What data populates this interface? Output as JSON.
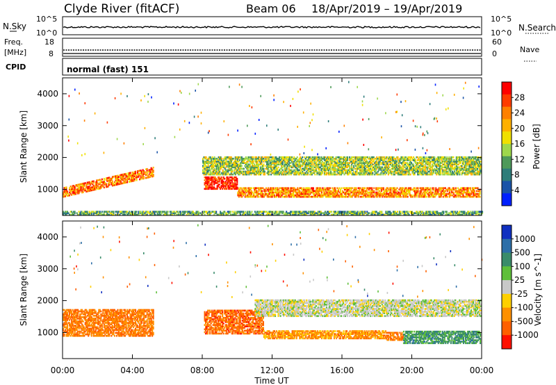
{
  "header": {
    "station": "Clyde River (fitACF)",
    "beam": "Beam 06",
    "date_range": "18/Apr/2019 – 19/Apr/2019"
  },
  "noise_panel": {
    "left_label": "N.Sky",
    "right_label": "N.Search",
    "left_ticks": [
      "10^5",
      "10^0"
    ],
    "right_ticks": [
      "10^5",
      "10^0"
    ]
  },
  "freq_panel": {
    "left_label_line1": "Freq.",
    "left_label_line2": "[MHz]",
    "right_label": "Nave",
    "left_ticks": [
      "18",
      "8"
    ],
    "right_ticks": [
      "60",
      "0"
    ]
  },
  "cpid_panel": {
    "label": "CPID",
    "mode_text": "normal (fast) 151"
  },
  "x_axis": {
    "label": "Time UT",
    "ticks": [
      "00:00",
      "04:00",
      "08:00",
      "12:00",
      "16:00",
      "20:00",
      "00:00"
    ]
  },
  "chart_data": [
    {
      "type": "heatmap",
      "name": "power",
      "ylabel": "Slant Range [km]",
      "ylim": [
        180,
        4500
      ],
      "yticks": [
        1000,
        2000,
        3000,
        4000
      ],
      "xlim_hours": [
        0,
        24
      ],
      "colorbar": {
        "label": "Power [dB]",
        "tick_labels": [
          "28",
          "24",
          "20",
          "16",
          "12",
          "8",
          "4"
        ],
        "colors": [
          "#ff0000",
          "#ff3b00",
          "#ff8000",
          "#ffb000",
          "#f0e000",
          "#9ed84c",
          "#4e9a5a",
          "#2e7d7a",
          "#1a53a8",
          "#0020ff"
        ]
      },
      "bands": [
        {
          "t0": 0.0,
          "t1": 5.2,
          "r0": 880,
          "r1": 1720,
          "level": 0.78,
          "note": "sloping band"
        },
        {
          "t0": 8.1,
          "t1": 10.0,
          "r0": 1000,
          "r1": 1400,
          "level": 0.95
        },
        {
          "t0": 10.0,
          "t1": 23.9,
          "r0": 750,
          "r1": 1050,
          "level": 0.75
        },
        {
          "t0": 8.0,
          "t1": 23.9,
          "r0": 1450,
          "r1": 2000,
          "level": 0.45
        },
        {
          "t0": 0.0,
          "t1": 24.0,
          "r0": 190,
          "r1": 320,
          "level": 0.35
        }
      ]
    },
    {
      "type": "heatmap",
      "name": "velocity",
      "ylabel": "Slant Range [km]",
      "ylim": [
        180,
        4500
      ],
      "yticks": [
        1000,
        2000,
        3000,
        4000
      ],
      "xlim_hours": [
        0,
        24
      ],
      "colorbar": {
        "label": "Velocity [m s^-1]",
        "tick_labels": [
          "1000",
          "500",
          "100",
          "25",
          "-25",
          "-100",
          "-500",
          "-1000"
        ],
        "colors": [
          "#1030c0",
          "#2d6fa8",
          "#3a8c6a",
          "#5fbf3a",
          "#c8c8c8",
          "#ffd000",
          "#ff9000",
          "#ff6000",
          "#ff1000"
        ]
      },
      "bands": [
        {
          "t0": 0.0,
          "t1": 5.2,
          "r0": 880,
          "r1": 1720,
          "level": -0.6
        },
        {
          "t0": 8.1,
          "t1": 11.5,
          "r0": 950,
          "r1": 1700,
          "level": -0.7
        },
        {
          "t0": 11.5,
          "t1": 18.5,
          "r0": 800,
          "r1": 1050,
          "level": -0.5
        },
        {
          "t0": 18.5,
          "t1": 19.5,
          "r0": 750,
          "r1": 1000,
          "level": -0.6
        },
        {
          "t0": 19.5,
          "t1": 23.9,
          "r0": 650,
          "r1": 1050,
          "level": 0.45
        },
        {
          "t0": 11.0,
          "t1": 23.9,
          "r0": 1500,
          "r1": 2000,
          "level": 0.0
        }
      ]
    }
  ]
}
